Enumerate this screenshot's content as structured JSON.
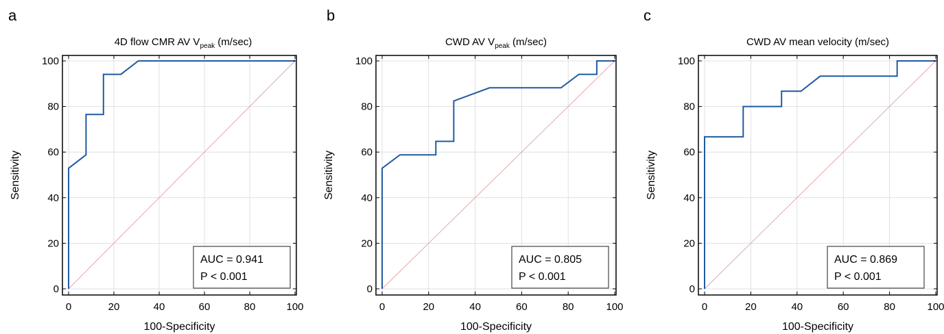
{
  "chart_data": [
    {
      "type": "line",
      "panel_label": "a",
      "title": "4D flow CMR AV V",
      "title_sub": "peak",
      "title_suffix": " (m/sec)",
      "xlabel": "100-Specificity",
      "ylabel": "Sensitivity",
      "xlim": [
        0,
        100
      ],
      "ylim": [
        0,
        100
      ],
      "xticks": [
        0,
        20,
        40,
        60,
        80,
        100
      ],
      "yticks": [
        0,
        20,
        40,
        60,
        80,
        100
      ],
      "grid": true,
      "x": [
        0,
        0,
        7.7,
        7.7,
        15.4,
        15.4,
        23.1,
        30.8,
        100
      ],
      "y": [
        0,
        52.9,
        58.8,
        76.5,
        76.5,
        94.1,
        94.1,
        100,
        100
      ],
      "diagonal": true,
      "annotation": {
        "auc": "AUC = 0.941",
        "p": "P < 0.001",
        "position": "bottom-right"
      }
    },
    {
      "type": "line",
      "panel_label": "b",
      "title": "CWD AV V",
      "title_sub": "peak",
      "title_suffix": " (m/sec)",
      "xlabel": "100-Specificity",
      "ylabel": "Sensitivity",
      "xlim": [
        0,
        100
      ],
      "ylim": [
        0,
        100
      ],
      "xticks": [
        0,
        20,
        40,
        60,
        80,
        100
      ],
      "yticks": [
        0,
        20,
        40,
        60,
        80,
        100
      ],
      "grid": true,
      "x": [
        0,
        0,
        7.7,
        23.1,
        23.1,
        30.8,
        30.8,
        46.2,
        76.9,
        84.6,
        92.3,
        92.3,
        100
      ],
      "y": [
        0,
        52.9,
        58.8,
        58.8,
        64.7,
        64.7,
        82.4,
        88.2,
        88.2,
        94.1,
        94.1,
        100,
        100
      ],
      "diagonal": true,
      "annotation": {
        "auc": "AUC = 0.805",
        "p": "P < 0.001",
        "position": "bottom-right"
      }
    },
    {
      "type": "line",
      "panel_label": "c",
      "title": "CWD AV mean velocity",
      "title_sub": "",
      "title_suffix": " (m/sec)",
      "xlabel": "100-Specificity",
      "ylabel": "Sensitivity",
      "xlim": [
        0,
        100
      ],
      "ylim": [
        0,
        100
      ],
      "xticks": [
        0,
        20,
        40,
        60,
        80,
        100
      ],
      "yticks": [
        0,
        20,
        40,
        60,
        80,
        100
      ],
      "grid": true,
      "x": [
        0,
        0,
        16.7,
        16.7,
        33.3,
        33.3,
        41.7,
        50,
        83.3,
        83.3,
        100
      ],
      "y": [
        0,
        66.7,
        66.7,
        80,
        80,
        86.7,
        86.7,
        93.3,
        93.3,
        100,
        100
      ],
      "diagonal": true,
      "annotation": {
        "auc": "AUC = 0.869",
        "p": "P < 0.001",
        "position": "bottom-right"
      }
    }
  ]
}
